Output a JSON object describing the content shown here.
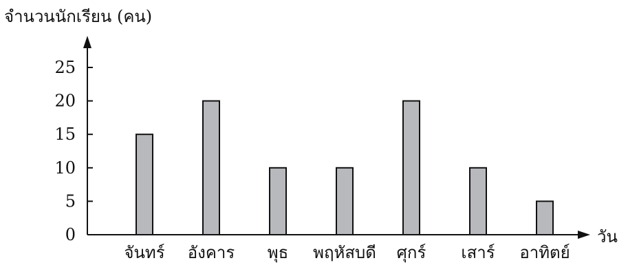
{
  "chart_data": {
    "type": "bar",
    "title": "",
    "ylabel": "จำนวนนักเรียน (คน)",
    "xlabel": "วัน",
    "categories": [
      "จันทร์",
      "อังคาร",
      "พุธ",
      "พฤหัสบดี",
      "ศุกร์",
      "เสาร์",
      "อาทิตย์"
    ],
    "values": [
      15,
      20,
      10,
      10,
      20,
      10,
      5
    ],
    "ylim": [
      0,
      25
    ],
    "yticks": [
      "0",
      "5",
      "10",
      "15",
      "20",
      "25"
    ],
    "grid": false,
    "legend": "none",
    "bar_color": "#b8b9bd",
    "axis_color": "#111111"
  }
}
